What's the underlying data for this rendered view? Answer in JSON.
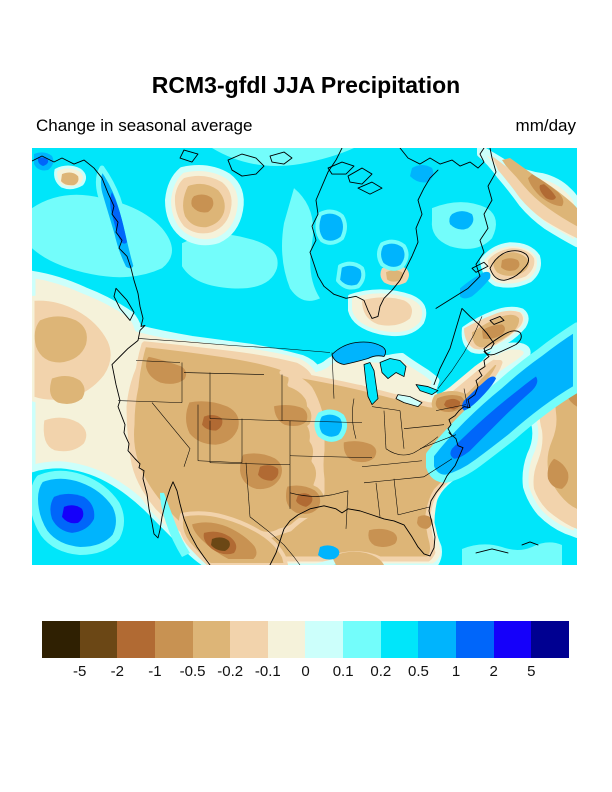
{
  "header": {
    "title": "RCM3-gfdl JJA Precipitation",
    "subtitle": "Change in seasonal average",
    "units": "mm/day"
  },
  "colorbar": {
    "ticks": [
      "-5",
      "-2",
      "-1",
      "-0.5",
      "-0.2",
      "-0.1",
      "0",
      "0.1",
      "0.2",
      "0.5",
      "1",
      "2",
      "5"
    ],
    "colors": [
      "#2F2002",
      "#6B4715",
      "#B16A33",
      "#C89252",
      "#DDB577",
      "#F2D3AC",
      "#F5F2DA",
      "#CCFFFB",
      "#73FDFB",
      "#00E6FA",
      "#00B4FD",
      "#0066FA",
      "#1500FA",
      "#000091"
    ]
  },
  "map": {
    "region": "North America",
    "palette": {
      "darkest_brown": "#2F2002",
      "dark_brown": "#6B4715",
      "sienna": "#B16A33",
      "brown": "#C89252",
      "tan": "#DDB577",
      "pale_tan": "#F2D3AC",
      "cream": "#F5F2DA",
      "pale_cyan": "#CCFFFB",
      "light_cyan": "#73FDFB",
      "cyan": "#00E6FA",
      "sky_blue": "#00B4FD",
      "blue": "#0066FA",
      "strong_blue": "#1500FA",
      "navy": "#000091",
      "outline": "#000000"
    }
  },
  "chart_data": {
    "type": "heatmap",
    "title": "RCM3-gfdl JJA Precipitation",
    "subtitle": "Change in seasonal average",
    "units": "mm/day",
    "region": "North America",
    "levels": [
      -5,
      -2,
      -1,
      -0.5,
      -0.2,
      -0.1,
      0,
      0.1,
      0.2,
      0.5,
      1,
      2,
      5
    ],
    "colors": [
      "#2F2002",
      "#6B4715",
      "#B16A33",
      "#C89252",
      "#DDB577",
      "#F2D3AC",
      "#F5F2DA",
      "#CCFFFB",
      "#73FDFB",
      "#00E6FA",
      "#00B4FD",
      "#0066FA",
      "#1500FA",
      "#000091"
    ],
    "legend_position": "bottom",
    "notes": "Filled-contour map: browns (drier, -5 to 0 mm/day) over the western/central/eastern United States, Mexico, NE Pacific patch and far NW Atlantic; cyans/blues (wetter, 0 to 5 mm/day) over Alaska, most of Canada, Hudson Bay, the BC coast, SW Pacific corner and a western-Atlantic storm-track band off the US east coast."
  }
}
